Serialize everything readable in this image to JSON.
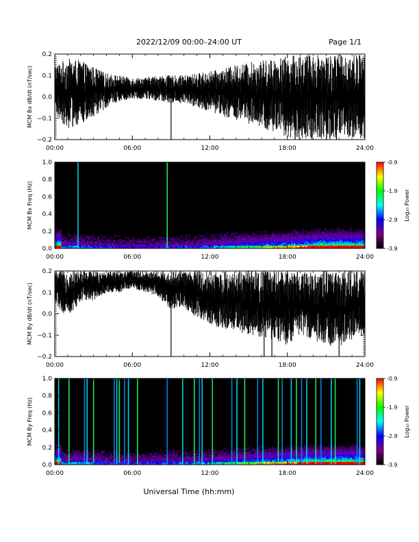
{
  "header": {
    "title": "2022/12/09  00:00–24:00 UT",
    "page": "Page 1/1"
  },
  "footer": {
    "xlabel": "Universal Time (hh:mm)"
  },
  "colorbar": {
    "label": "Log₁₀ Power",
    "ticks": [
      "-0.9",
      "-1.9",
      "-2.9",
      "-3.9"
    ],
    "colors": [
      "#ff0000",
      "#ffff00",
      "#00ff00",
      "#00ffff",
      "#0000ff",
      "#800080",
      "#000000"
    ]
  },
  "chart_data": [
    {
      "type": "line",
      "id": "bx-timeseries",
      "ylabel": "MCM Bx dB/dt (nT/sec)",
      "xlim": [
        0,
        24
      ],
      "ylim": [
        -0.2,
        0.2
      ],
      "xticks": [
        "00:00",
        "06:00",
        "12:00",
        "18:00",
        "24:00"
      ],
      "yticks": [
        "0.2",
        "0.1",
        "0.0",
        "−0.1",
        "−0.2"
      ],
      "envelope": {
        "x": [
          0,
          1,
          2,
          3,
          4,
          5,
          6,
          7,
          8,
          9,
          10,
          11,
          12,
          13,
          14,
          15,
          16,
          17,
          18,
          19,
          20,
          21,
          22,
          23,
          24
        ],
        "upper": [
          0.15,
          0.18,
          0.17,
          0.14,
          0.11,
          0.1,
          0.09,
          0.09,
          0.1,
          0.1,
          0.1,
          0.11,
          0.12,
          0.13,
          0.15,
          0.16,
          0.17,
          0.18,
          0.19,
          0.2,
          0.2,
          0.2,
          0.2,
          0.2,
          0.2
        ],
        "lower": [
          -0.08,
          -0.15,
          -0.13,
          -0.1,
          -0.05,
          -0.02,
          -0.01,
          -0.01,
          -0.02,
          -0.03,
          -0.03,
          -0.05,
          -0.07,
          -0.09,
          -0.11,
          -0.13,
          -0.15,
          -0.17,
          -0.19,
          -0.2,
          -0.2,
          -0.2,
          -0.2,
          -0.2,
          -0.2
        ]
      },
      "spikes": [
        {
          "x": 9.0,
          "y": -0.2
        },
        {
          "x": 18.6,
          "y": -0.2
        },
        {
          "x": 21.8,
          "y": -0.2
        }
      ]
    },
    {
      "type": "heatmap",
      "id": "bx-spectrogram",
      "ylabel": "MCM Bx Freq (Hz)",
      "xlim": [
        0,
        24
      ],
      "ylim": [
        0.0,
        1.0
      ],
      "zlim": [
        -3.9,
        -0.9
      ],
      "xticks": [
        "00:00",
        "06:00",
        "12:00",
        "18:00",
        "24:00"
      ],
      "yticks": [
        "1.0",
        "0.8",
        "0.6",
        "0.4",
        "0.2",
        "0.0"
      ],
      "activity": [
        0.35,
        0.4,
        0.35,
        0.3,
        0.28,
        0.25,
        0.25,
        0.25,
        0.3,
        0.3,
        0.3,
        0.35,
        0.4,
        0.45,
        0.5,
        0.55,
        0.6,
        0.65,
        0.7,
        0.8,
        0.85,
        0.9,
        0.9,
        0.9
      ],
      "vertical_lines": [
        1.8,
        8.7
      ]
    },
    {
      "type": "line",
      "id": "by-timeseries",
      "ylabel": "MCM By dB/dt (nT/sec)",
      "xlim": [
        0,
        24
      ],
      "ylim": [
        -0.2,
        0.2
      ],
      "xticks": [
        "00:00",
        "06:00",
        "12:00",
        "18:00",
        "24:00"
      ],
      "yticks": [
        "0.2",
        "0.1",
        "0.0",
        "−0.1",
        "−0.2"
      ],
      "envelope": {
        "x": [
          0,
          1,
          2,
          3,
          4,
          5,
          6,
          7,
          8,
          9,
          10,
          11,
          12,
          13,
          14,
          15,
          16,
          17,
          18,
          19,
          20,
          21,
          22,
          23,
          24
        ],
        "upper": [
          0.2,
          0.2,
          0.2,
          0.2,
          0.2,
          0.2,
          0.2,
          0.2,
          0.2,
          0.2,
          0.2,
          0.2,
          0.2,
          0.2,
          0.2,
          0.2,
          0.2,
          0.2,
          0.2,
          0.2,
          0.2,
          0.2,
          0.2,
          0.2,
          0.2
        ],
        "lower": [
          0.05,
          -0.02,
          0.06,
          0.06,
          0.1,
          0.1,
          0.12,
          0.1,
          0.08,
          0.02,
          0.03,
          -0.02,
          -0.05,
          -0.07,
          -0.08,
          -0.1,
          -0.12,
          -0.12,
          -0.15,
          -0.1,
          -0.12,
          -0.15,
          -0.16,
          -0.12,
          -0.1
        ]
      },
      "spikes": [
        {
          "x": 9.0,
          "y": -0.2
        },
        {
          "x": 16.2,
          "y": -0.2
        },
        {
          "x": 16.8,
          "y": -0.2
        },
        {
          "x": 22.0,
          "y": -0.2
        }
      ]
    },
    {
      "type": "heatmap",
      "id": "by-spectrogram",
      "ylabel": "MCM By Freq (Hz)",
      "xlim": [
        0,
        24
      ],
      "ylim": [
        0.0,
        1.0
      ],
      "zlim": [
        -3.9,
        -0.9
      ],
      "xticks": [
        "00:00",
        "06:00",
        "12:00",
        "18:00",
        "24:00"
      ],
      "yticks": [
        "1.0",
        "0.8",
        "0.6",
        "0.4",
        "0.2",
        "0.0"
      ],
      "activity": [
        0.4,
        0.45,
        0.4,
        0.35,
        0.3,
        0.3,
        0.3,
        0.3,
        0.35,
        0.35,
        0.35,
        0.4,
        0.45,
        0.5,
        0.55,
        0.6,
        0.65,
        0.7,
        0.75,
        0.85,
        0.9,
        0.9,
        0.9,
        0.9
      ],
      "vertical_lines": [
        0.3,
        1.1,
        2.3,
        2.5,
        3.0,
        4.6,
        4.8,
        5.0,
        5.4,
        5.7,
        6.4,
        8.7,
        9.9,
        10.8,
        11.2,
        11.4,
        12.2,
        13.7,
        14.1,
        14.7,
        15.7,
        16.1,
        17.3,
        17.6,
        18.3,
        18.7,
        19.1,
        19.5,
        20.2,
        20.6,
        21.4,
        21.7,
        23.4,
        23.6
      ]
    }
  ]
}
